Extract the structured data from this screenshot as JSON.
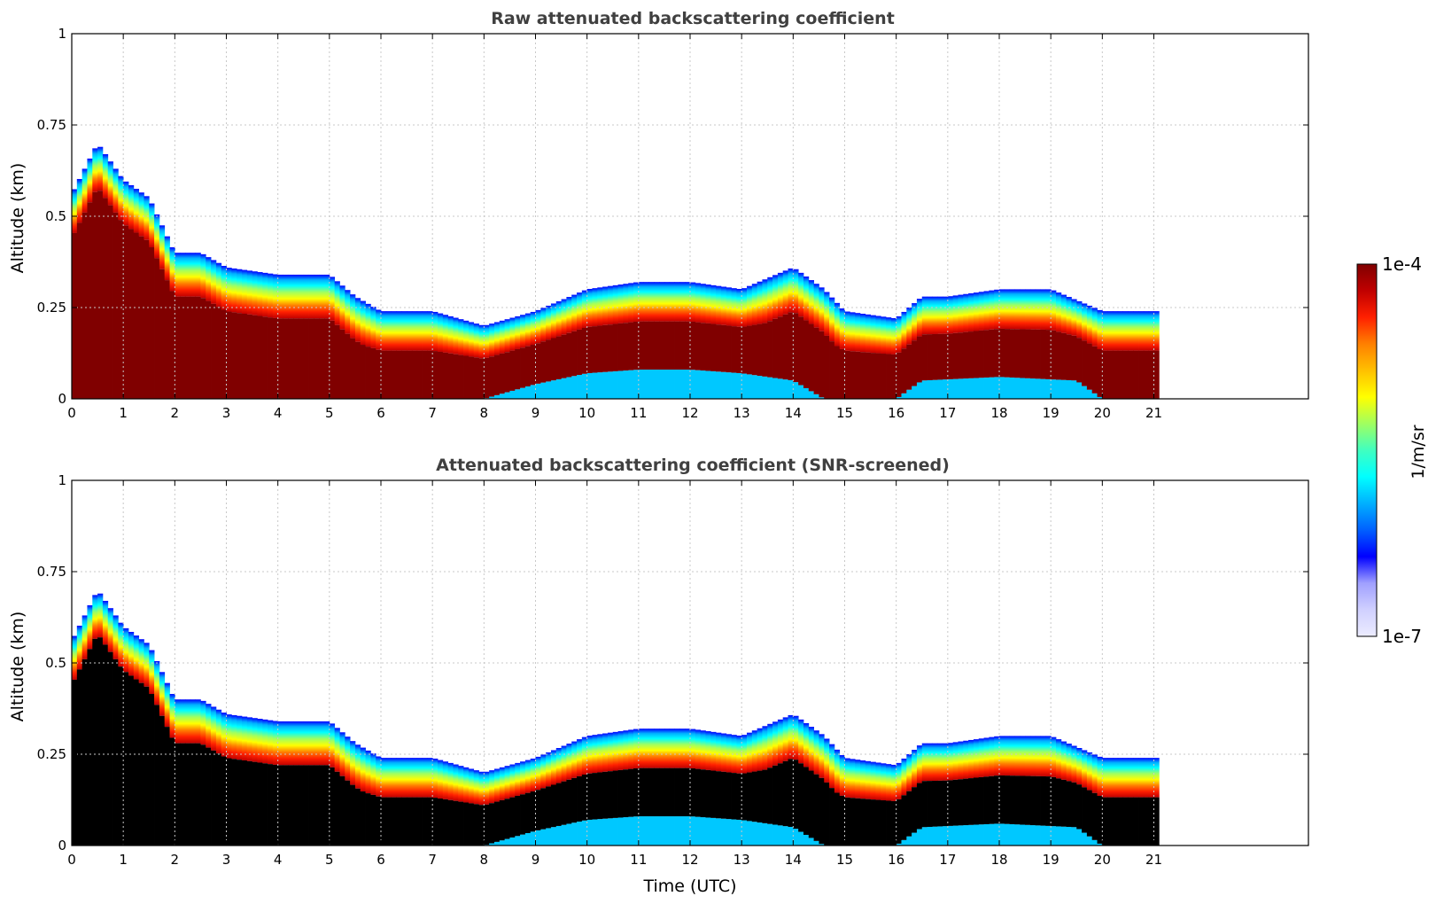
{
  "chart_data": [
    {
      "type": "heatmap",
      "id": "raw",
      "title": "Raw attenuated backscattering coefficient",
      "xlabel": "",
      "ylabel": "Altitude (km)",
      "xlim": [
        0,
        24
      ],
      "ylim": [
        0,
        1
      ],
      "x_ticks": [
        "0",
        "1",
        "2",
        "3",
        "4",
        "5",
        "6",
        "7",
        "8",
        "9",
        "10",
        "11",
        "12",
        "13",
        "14",
        "15",
        "16",
        "17",
        "18",
        "19",
        "20",
        "21"
      ],
      "y_ticks": [
        "0",
        "0.25",
        "0.5",
        "0.75",
        "1"
      ],
      "grid": true,
      "data_end_hour": 21.1,
      "layer_top_km": [
        [
          0,
          0.56
        ],
        [
          0.5,
          0.7
        ],
        [
          1,
          0.6
        ],
        [
          1.5,
          0.55
        ],
        [
          2,
          0.4
        ],
        [
          2.5,
          0.4
        ],
        [
          3,
          0.36
        ],
        [
          4,
          0.34
        ],
        [
          5,
          0.34
        ],
        [
          5.5,
          0.28
        ],
        [
          6,
          0.24
        ],
        [
          7,
          0.24
        ],
        [
          8,
          0.2
        ],
        [
          9,
          0.24
        ],
        [
          10,
          0.3
        ],
        [
          11,
          0.32
        ],
        [
          12,
          0.32
        ],
        [
          13,
          0.3
        ],
        [
          14,
          0.36
        ],
        [
          14.6,
          0.3
        ],
        [
          15,
          0.24
        ],
        [
          16,
          0.22
        ],
        [
          16.5,
          0.28
        ],
        [
          17,
          0.28
        ],
        [
          18,
          0.3
        ],
        [
          19,
          0.3
        ],
        [
          20,
          0.24
        ],
        [
          21,
          0.24
        ]
      ],
      "saturated_base_km": [
        [
          0,
          0.0
        ],
        [
          5.5,
          0.0
        ],
        [
          6,
          0.0
        ],
        [
          8,
          0.0
        ],
        [
          9,
          0.04
        ],
        [
          10,
          0.07
        ],
        [
          11,
          0.08
        ],
        [
          12,
          0.08
        ],
        [
          13,
          0.07
        ],
        [
          14,
          0.05
        ],
        [
          14.6,
          0.0
        ],
        [
          16,
          0.0
        ],
        [
          16.5,
          0.05
        ],
        [
          18,
          0.06
        ],
        [
          19.5,
          0.05
        ],
        [
          20,
          0.0
        ],
        [
          21.1,
          0.0
        ]
      ],
      "saturated_value": "1e-4",
      "screened_marker": ""
    },
    {
      "type": "heatmap",
      "id": "screened",
      "title": "Attenuated backscattering coefficient (SNR-screened)",
      "xlabel": "Time (UTC)",
      "ylabel": "Altitude (km)",
      "xlim": [
        0,
        24
      ],
      "ylim": [
        0,
        1
      ],
      "x_ticks": [
        "0",
        "1",
        "2",
        "3",
        "4",
        "5",
        "6",
        "7",
        "8",
        "9",
        "10",
        "11",
        "12",
        "13",
        "14",
        "15",
        "16",
        "17",
        "18",
        "19",
        "20",
        "21"
      ],
      "y_ticks": [
        "0",
        "0.25",
        "0.5",
        "0.75",
        "1"
      ],
      "grid": true,
      "data_end_hour": 21.1,
      "layer_top_km": [
        [
          0,
          0.56
        ],
        [
          0.5,
          0.7
        ],
        [
          1,
          0.6
        ],
        [
          1.5,
          0.55
        ],
        [
          2,
          0.4
        ],
        [
          2.5,
          0.4
        ],
        [
          3,
          0.36
        ],
        [
          4,
          0.34
        ],
        [
          5,
          0.34
        ],
        [
          5.5,
          0.28
        ],
        [
          6,
          0.24
        ],
        [
          7,
          0.24
        ],
        [
          8,
          0.2
        ],
        [
          9,
          0.24
        ],
        [
          10,
          0.3
        ],
        [
          11,
          0.32
        ],
        [
          12,
          0.32
        ],
        [
          13,
          0.3
        ],
        [
          14,
          0.36
        ],
        [
          14.6,
          0.3
        ],
        [
          15,
          0.24
        ],
        [
          16,
          0.22
        ],
        [
          16.5,
          0.28
        ],
        [
          17,
          0.28
        ],
        [
          18,
          0.3
        ],
        [
          19,
          0.3
        ],
        [
          20,
          0.24
        ],
        [
          21,
          0.24
        ]
      ],
      "saturated_base_km": [
        [
          0,
          0.0
        ],
        [
          5.5,
          0.0
        ],
        [
          6,
          0.0
        ],
        [
          8,
          0.0
        ],
        [
          9,
          0.04
        ],
        [
          10,
          0.07
        ],
        [
          11,
          0.08
        ],
        [
          12,
          0.08
        ],
        [
          13,
          0.07
        ],
        [
          14,
          0.05
        ],
        [
          14.6,
          0.0
        ],
        [
          16,
          0.0
        ],
        [
          16.5,
          0.05
        ],
        [
          18,
          0.06
        ],
        [
          19.5,
          0.05
        ],
        [
          20,
          0.0
        ],
        [
          21.1,
          0.0
        ]
      ],
      "saturated_value": "1e-4",
      "screened_marker": "black"
    }
  ],
  "colorbar": {
    "label": "1/m/sr",
    "max_label": "1e-4",
    "min_label": "1e-7",
    "colors": [
      "#ececff",
      "#d0d0ff",
      "#a0a0ff",
      "#0000ff",
      "#0060ff",
      "#00b0ff",
      "#00ffff",
      "#40ffc0",
      "#a0ff60",
      "#ffff00",
      "#ffc000",
      "#ff8000",
      "#ff2000",
      "#c00000",
      "#800000"
    ]
  }
}
